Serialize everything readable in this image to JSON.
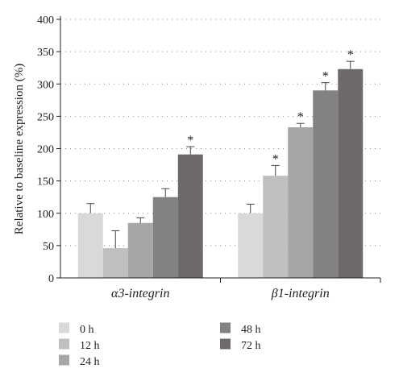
{
  "chart_data": {
    "type": "bar",
    "ylabel": "Relative to baseline expression (%)",
    "ylim": [
      0,
      400
    ],
    "yticks": [
      0,
      50,
      100,
      150,
      200,
      250,
      300,
      350,
      400
    ],
    "grid": "dotted horizontal",
    "categories": [
      "α3-integrin",
      "β1-integrin"
    ],
    "series": [
      {
        "name": "0 h",
        "color": "#d9d9d9",
        "values": [
          100,
          100
        ],
        "errors": [
          15,
          14
        ],
        "significant": [
          false,
          false
        ]
      },
      {
        "name": "12 h",
        "color": "#bfbfbf",
        "values": [
          46,
          158
        ],
        "errors": [
          27,
          16
        ],
        "significant": [
          false,
          true
        ]
      },
      {
        "name": "24 h",
        "color": "#a6a6a6",
        "values": [
          85,
          233
        ],
        "errors": [
          8,
          6
        ],
        "significant": [
          false,
          true
        ]
      },
      {
        "name": "48 h",
        "color": "#828282",
        "values": [
          125,
          290
        ],
        "errors": [
          13,
          12
        ],
        "significant": [
          false,
          true
        ]
      },
      {
        "name": "72 h",
        "color": "#6f6a6a",
        "values": [
          191,
          323
        ],
        "errors": [
          12,
          12
        ],
        "significant": [
          true,
          true
        ]
      }
    ],
    "significance_marker": "*",
    "legend_position": "bottom"
  }
}
